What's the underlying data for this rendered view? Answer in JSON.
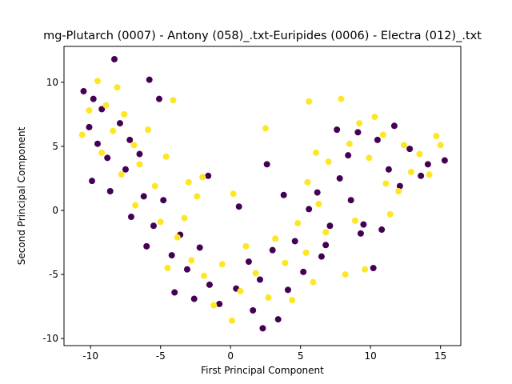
{
  "chart_data": {
    "type": "scatter",
    "title": "mg-Plutarch (0007) - Antony (058)_.txt-Euripides (0006) - Electra (012)_.txt",
    "xlabel": "First Principal Component",
    "ylabel": "Second Principal Component",
    "xlim": [
      -11.9,
      16.45
    ],
    "ylim": [
      -10.55,
      12.8
    ],
    "xticks": [
      -10,
      -5,
      0,
      5,
      10,
      15
    ],
    "yticks": [
      -10,
      -5,
      0,
      5,
      10
    ],
    "series": [
      {
        "color": "#440154",
        "x": [
          -10.5,
          -9.8,
          -9.2,
          -8.3,
          -10.1,
          -9.5,
          -8.8,
          -7.9,
          -7.2,
          -9.9,
          -8.6,
          -7.5,
          -6.5,
          -5.8,
          -5.1,
          -6.2,
          -7.1,
          -5.5,
          -4.8,
          -6.0,
          -4.2,
          -3.6,
          -4.0,
          -3.1,
          -2.2,
          -1.5,
          -2.6,
          -0.8,
          0.4,
          1.3,
          1.6,
          2.3,
          2.1,
          3.4,
          3.0,
          4.1,
          4.6,
          5.2,
          6.5,
          7.1,
          6.2,
          7.8,
          8.6,
          9.3,
          10.2,
          8.4,
          9.1,
          10.5,
          11.3,
          12.1,
          12.8,
          13.6,
          14.1,
          15.3,
          11.7,
          10.8,
          9.5,
          2.6,
          3.8,
          -1.6,
          0.6,
          5.6,
          6.8,
          7.6
        ],
        "y": [
          9.3,
          8.7,
          7.9,
          11.8,
          6.5,
          5.2,
          4.1,
          6.8,
          5.5,
          2.3,
          1.5,
          3.2,
          4.4,
          10.2,
          8.7,
          1.1,
          -0.5,
          -1.2,
          0.8,
          -2.8,
          -3.5,
          -1.9,
          -6.4,
          -4.6,
          -2.9,
          -5.8,
          -6.9,
          -7.3,
          -6.1,
          -4.0,
          -7.8,
          -9.2,
          -5.4,
          -8.5,
          -3.1,
          -6.2,
          -2.4,
          -4.8,
          -3.6,
          -1.2,
          1.4,
          2.5,
          0.8,
          -1.8,
          -4.5,
          4.3,
          6.1,
          5.5,
          3.2,
          1.9,
          4.8,
          2.7,
          3.6,
          3.9,
          6.6,
          -1.5,
          -1.1,
          3.6,
          1.2,
          2.7,
          0.3,
          0.1,
          -2.7,
          6.3
        ]
      },
      {
        "color": "#fde725",
        "x": [
          -10.6,
          -10.1,
          -9.5,
          -8.9,
          -8.1,
          -9.2,
          -8.4,
          -7.6,
          -6.9,
          -7.8,
          -6.5,
          -5.9,
          -6.8,
          -5.4,
          -4.6,
          -4.1,
          -5.0,
          -3.8,
          -4.5,
          -3.3,
          -2.4,
          -2.8,
          -1.9,
          -1.2,
          -0.6,
          0.2,
          0.1,
          0.7,
          1.1,
          1.8,
          2.5,
          2.7,
          3.2,
          3.9,
          4.4,
          4.8,
          5.4,
          5.9,
          5.5,
          6.3,
          7.0,
          5.6,
          7.9,
          6.8,
          8.2,
          8.9,
          9.6,
          8.5,
          9.2,
          9.9,
          10.3,
          10.9,
          11.4,
          12.0,
          12.4,
          12.9,
          13.5,
          14.2,
          14.7,
          15.0,
          11.1,
          6.1,
          -2.0,
          -3.0
        ],
        "y": [
          5.9,
          7.8,
          10.1,
          8.2,
          9.6,
          4.5,
          6.2,
          7.5,
          5.1,
          2.8,
          3.6,
          6.3,
          0.4,
          1.9,
          4.2,
          8.6,
          -0.9,
          -2.1,
          -4.5,
          -0.6,
          1.1,
          -3.9,
          -5.1,
          -7.4,
          -4.2,
          1.3,
          -8.6,
          -6.3,
          -2.8,
          -4.9,
          6.4,
          -6.8,
          -2.2,
          -4.1,
          -7.0,
          -1.0,
          -3.3,
          -5.6,
          2.2,
          0.5,
          3.8,
          8.5,
          8.7,
          -1.7,
          -5.0,
          -0.8,
          -4.6,
          5.2,
          6.8,
          4.1,
          7.3,
          5.9,
          -0.3,
          1.5,
          5.1,
          3.0,
          4.4,
          2.8,
          5.8,
          5.1,
          2.1,
          4.5,
          2.6,
          2.2
        ]
      }
    ]
  }
}
